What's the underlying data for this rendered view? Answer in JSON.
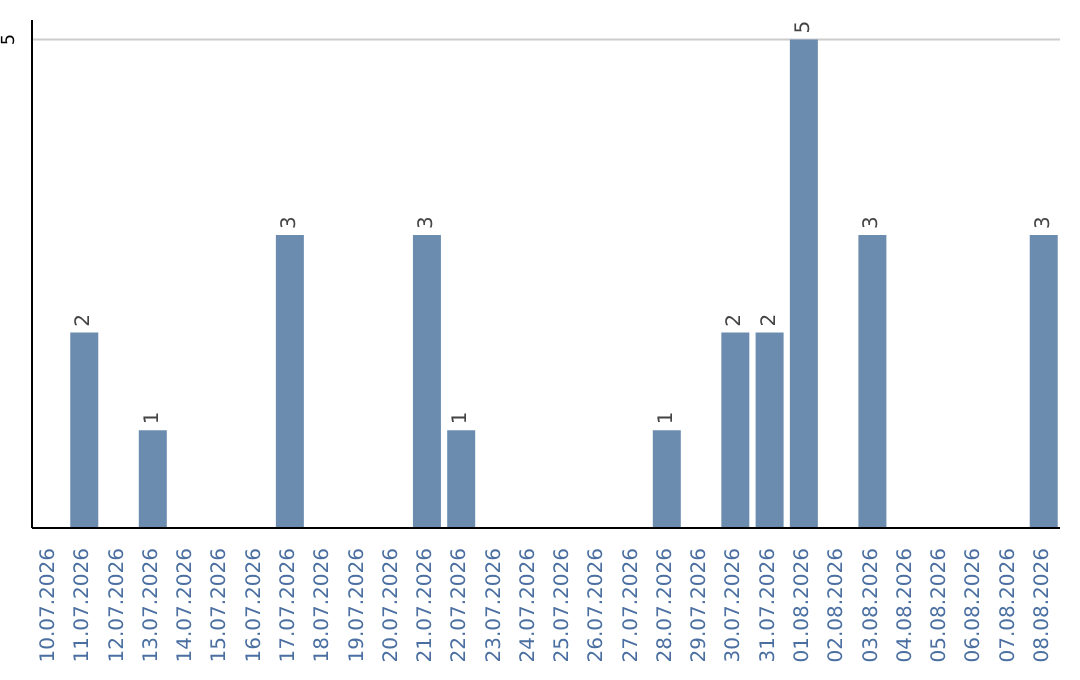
{
  "chart_data": {
    "type": "bar",
    "categories": [
      "10.07.2026",
      "11.07.2026",
      "12.07.2026",
      "13.07.2026",
      "14.07.2026",
      "15.07.2026",
      "16.07.2026",
      "17.07.2026",
      "18.07.2026",
      "19.07.2026",
      "20.07.2026",
      "21.07.2026",
      "22.07.2026",
      "23.07.2026",
      "24.07.2026",
      "25.07.2026",
      "26.07.2026",
      "27.07.2026",
      "28.07.2026",
      "29.07.2026",
      "30.07.2026",
      "31.07.2026",
      "01.08.2026",
      "02.08.2026",
      "03.08.2026",
      "04.08.2026",
      "05.08.2026",
      "06.08.2026",
      "07.08.2026",
      "08.08.2026"
    ],
    "values": [
      0,
      2,
      0,
      1,
      0,
      0,
      0,
      3,
      0,
      0,
      0,
      3,
      1,
      0,
      0,
      0,
      0,
      0,
      1,
      0,
      2,
      2,
      5,
      0,
      3,
      0,
      0,
      0,
      0,
      3
    ],
    "value_labels": [
      null,
      "2",
      null,
      "1",
      null,
      null,
      null,
      "3",
      null,
      null,
      null,
      "3",
      "1",
      null,
      null,
      null,
      null,
      null,
      "1",
      null,
      "2",
      "2",
      "5",
      null,
      "3",
      null,
      null,
      null,
      null,
      "3"
    ],
    "color": "#6b8cae",
    "ylim": [
      0,
      5.2
    ],
    "yticks": [
      5
    ],
    "grid": "y"
  }
}
